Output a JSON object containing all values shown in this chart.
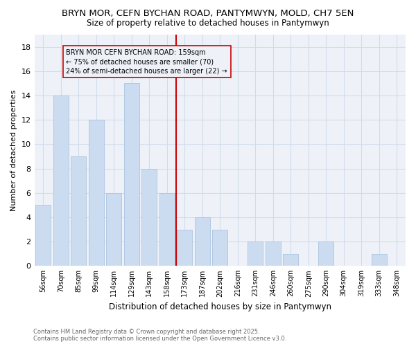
{
  "title1": "BRYN MOR, CEFN BYCHAN ROAD, PANTYMWYN, MOLD, CH7 5EN",
  "title2": "Size of property relative to detached houses in Pantymwyn",
  "xlabel": "Distribution of detached houses by size in Pantymwyn",
  "ylabel": "Number of detached properties",
  "categories": [
    "56sqm",
    "70sqm",
    "85sqm",
    "99sqm",
    "114sqm",
    "129sqm",
    "143sqm",
    "158sqm",
    "173sqm",
    "187sqm",
    "202sqm",
    "216sqm",
    "231sqm",
    "246sqm",
    "260sqm",
    "275sqm",
    "290sqm",
    "304sqm",
    "319sqm",
    "333sqm",
    "348sqm"
  ],
  "values": [
    5,
    14,
    9,
    12,
    6,
    15,
    8,
    6,
    3,
    4,
    3,
    0,
    2,
    2,
    1,
    0,
    2,
    0,
    0,
    1,
    0
  ],
  "bar_color": "#ccdcf0",
  "bar_edge_color": "#aac4e0",
  "grid_color": "#d0dcea",
  "vline_x": 7.5,
  "vline_color": "#cc0000",
  "annotation_text": "BRYN MOR CEFN BYCHAN ROAD: 159sqm\n← 75% of detached houses are smaller (70)\n24% of semi-detached houses are larger (22) →",
  "annotation_box_color": "#cc0000",
  "ylim": [
    0,
    19
  ],
  "yticks": [
    0,
    2,
    4,
    6,
    8,
    10,
    12,
    14,
    16,
    18
  ],
  "footer": "Contains HM Land Registry data © Crown copyright and database right 2025.\nContains public sector information licensed under the Open Government Licence v3.0.",
  "bg_color": "#ffffff",
  "plot_bg_color": "#eef2f8"
}
